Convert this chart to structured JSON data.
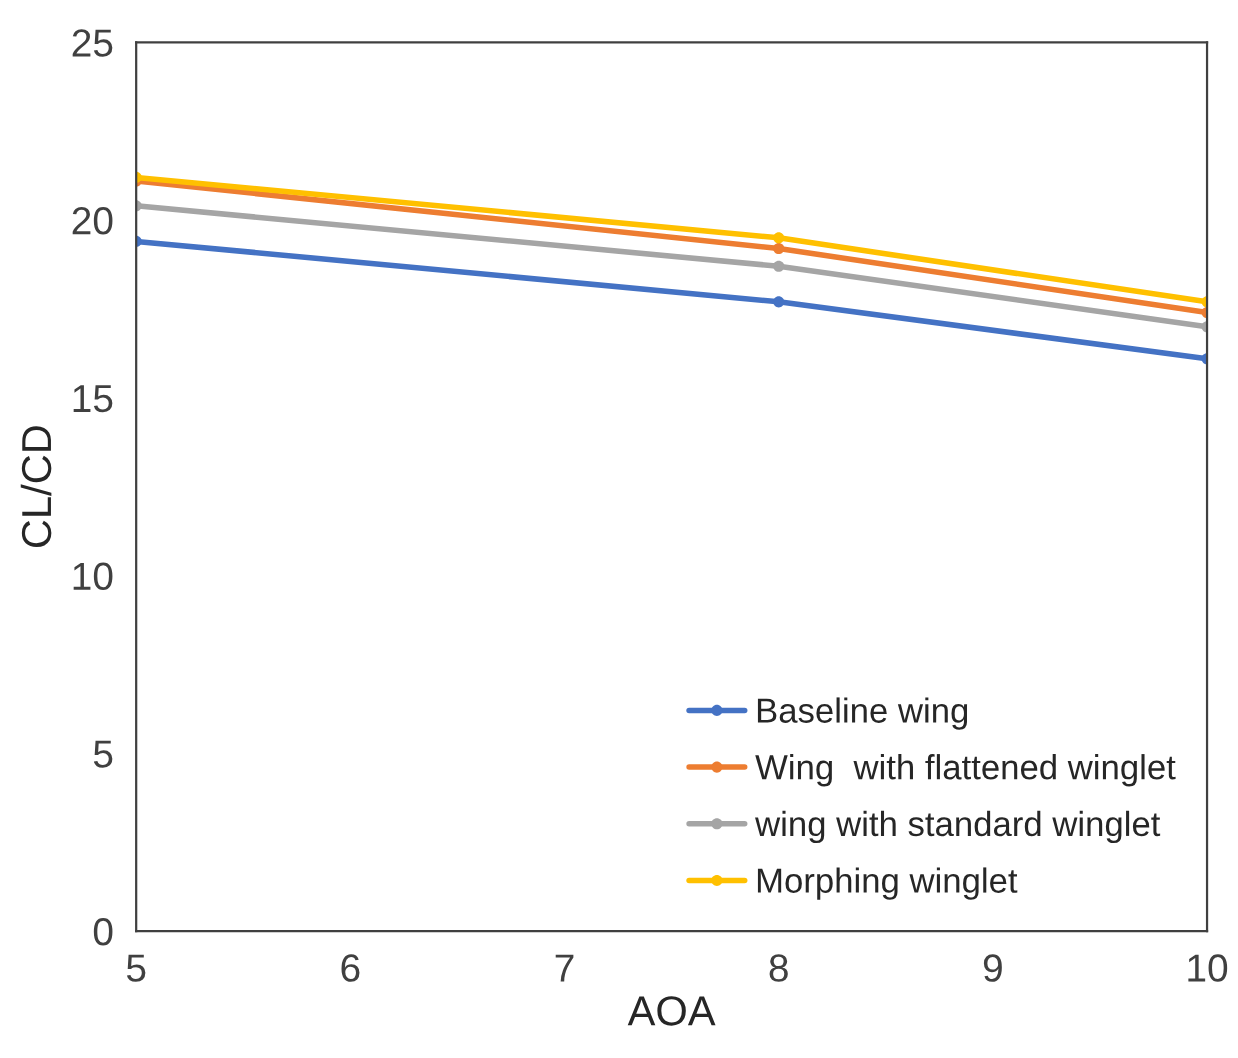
{
  "chart_data": {
    "type": "line",
    "xlabel": "AOA",
    "ylabel": "CL/CD",
    "x": [
      5,
      8,
      10
    ],
    "series": [
      {
        "name": "Baseline wing",
        "color": "#4472c4",
        "values": [
          19.4,
          17.7,
          16.1
        ]
      },
      {
        "name": "Wing  with flattened winglet",
        "color": "#ed7d31",
        "values": [
          21.1,
          19.2,
          17.4
        ]
      },
      {
        "name": "wing with standard winglet",
        "color": "#a5a5a5",
        "values": [
          20.4,
          18.7,
          17.0
        ]
      },
      {
        "name": "Morphing winglet",
        "color": "#ffc000",
        "values": [
          21.2,
          19.5,
          17.7
        ]
      }
    ],
    "xlim": [
      5,
      10
    ],
    "xticks": [
      5,
      6,
      7,
      8,
      9,
      10
    ],
    "ylim": [
      0,
      25
    ],
    "yticks": [
      0,
      5,
      10,
      15,
      20,
      25
    ],
    "grid": false,
    "legend": "bottom right",
    "marker": "circle",
    "line_style": "solid"
  }
}
